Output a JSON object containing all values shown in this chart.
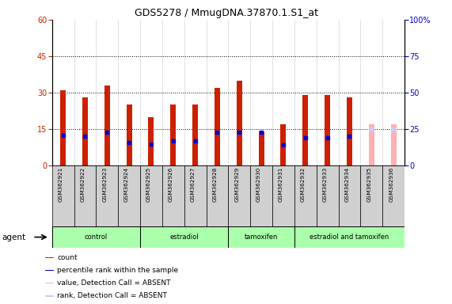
{
  "title": "GDS5278 / MmugDNA.37870.1.S1_at",
  "samples": [
    "GSM362921",
    "GSM362922",
    "GSM362923",
    "GSM362924",
    "GSM362925",
    "GSM362926",
    "GSM362927",
    "GSM362928",
    "GSM362929",
    "GSM362930",
    "GSM362931",
    "GSM362932",
    "GSM362933",
    "GSM362934",
    "GSM362935",
    "GSM362936"
  ],
  "counts": [
    31,
    28,
    33,
    25,
    20,
    25,
    25,
    32,
    35,
    14,
    17,
    29,
    29,
    28,
    17,
    17
  ],
  "ranks": [
    21,
    20,
    23,
    16,
    15,
    17,
    17,
    23,
    23,
    23,
    14,
    19,
    19,
    20,
    25,
    25
  ],
  "absent_flags": [
    false,
    false,
    false,
    false,
    false,
    false,
    false,
    false,
    false,
    false,
    false,
    false,
    false,
    false,
    true,
    true
  ],
  "groups": [
    {
      "name": "control",
      "start": 0,
      "end": 3
    },
    {
      "name": "estradiol",
      "start": 4,
      "end": 7
    },
    {
      "name": "tamoxifen",
      "start": 8,
      "end": 10
    },
    {
      "name": "estradiol and tamoxifen",
      "start": 11,
      "end": 15
    }
  ],
  "bar_color_present": "#cc2000",
  "bar_color_absent": "#ffb0b0",
  "rank_color_present": "#0000cc",
  "rank_color_absent": "#ccccff",
  "group_color": "#aaffaa",
  "group_border_color": "#000000",
  "ylim_left": [
    0,
    60
  ],
  "ylim_right": [
    0,
    100
  ],
  "yticks_left": [
    0,
    15,
    30,
    45,
    60
  ],
  "yticks_right": [
    0,
    25,
    50,
    75,
    100
  ],
  "grid_dotted_at": [
    15,
    30,
    45
  ],
  "background_color": "#ffffff",
  "cell_bg_color": "#d0d0d0",
  "cell_border_color": "#888888",
  "agent_label": "agent",
  "legend_items": [
    {
      "color": "#cc2000",
      "label": "count"
    },
    {
      "color": "#0000cc",
      "label": "percentile rank within the sample"
    },
    {
      "color": "#ffb0b0",
      "label": "value, Detection Call = ABSENT"
    },
    {
      "color": "#ccccff",
      "label": "rank, Detection Call = ABSENT"
    }
  ]
}
